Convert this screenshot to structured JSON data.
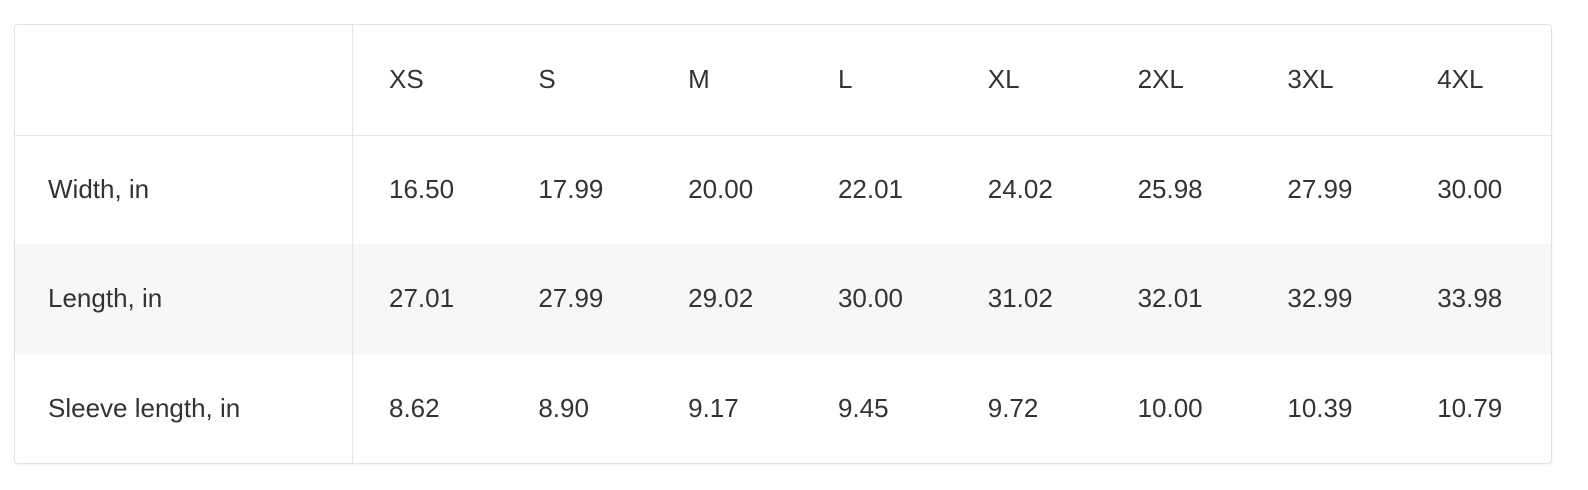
{
  "size_chart": {
    "corner": "",
    "sizes": [
      "XS",
      "S",
      "M",
      "L",
      "XL",
      "2XL",
      "3XL",
      "4XL"
    ],
    "rows": [
      {
        "label": "Width, in",
        "values": [
          "16.50",
          "17.99",
          "20.00",
          "22.01",
          "24.02",
          "25.98",
          "27.99",
          "30.00"
        ]
      },
      {
        "label": "Length, in",
        "values": [
          "27.01",
          "27.99",
          "29.02",
          "30.00",
          "31.02",
          "32.01",
          "32.99",
          "33.98"
        ]
      },
      {
        "label": "Sleeve length, in",
        "values": [
          "8.62",
          "8.90",
          "9.17",
          "9.45",
          "9.72",
          "10.00",
          "10.39",
          "10.79"
        ]
      }
    ]
  },
  "colors": {
    "text": "#333333",
    "border": "#e6e6e6",
    "stripe": "#f7f7f7",
    "background": "#ffffff"
  }
}
